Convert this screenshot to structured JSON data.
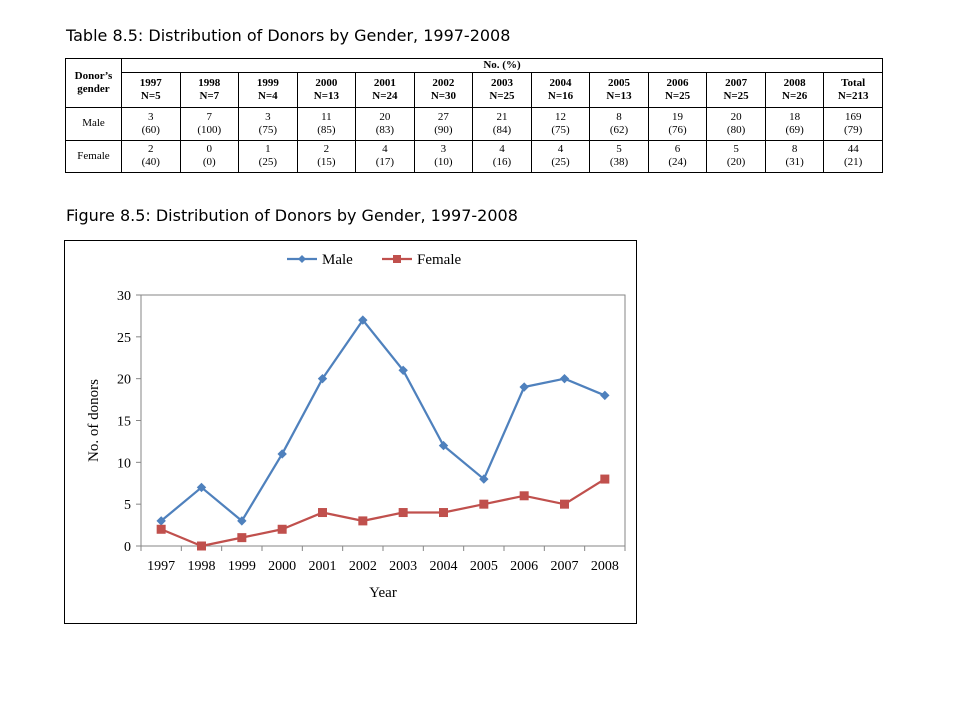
{
  "table_caption": "Table 8.5: Distribution of Donors by Gender, 1997-2008",
  "figure_caption": "Figure 8.5: Distribution of Donors by Gender, 1997-2008",
  "table": {
    "corner_header": "Donor’s gender",
    "group_header": "No. (%)",
    "columns": [
      {
        "year": "1997",
        "n": "N=5"
      },
      {
        "year": "1998",
        "n": "N=7"
      },
      {
        "year": "1999",
        "n": "N=4"
      },
      {
        "year": "2000",
        "n": "N=13"
      },
      {
        "year": "2001",
        "n": "N=24"
      },
      {
        "year": "2002",
        "n": "N=30"
      },
      {
        "year": "2003",
        "n": "N=25"
      },
      {
        "year": "2004",
        "n": "N=16"
      },
      {
        "year": "2005",
        "n": "N=13"
      },
      {
        "year": "2006",
        "n": "N=25"
      },
      {
        "year": "2007",
        "n": "N=25"
      },
      {
        "year": "2008",
        "n": "N=26"
      },
      {
        "year": "Total",
        "n": "N=213"
      }
    ],
    "rows": [
      {
        "label": "Male",
        "cells": [
          {
            "count": "3",
            "pct": "(60)"
          },
          {
            "count": "7",
            "pct": "(100)"
          },
          {
            "count": "3",
            "pct": "(75)"
          },
          {
            "count": "11",
            "pct": "(85)"
          },
          {
            "count": "20",
            "pct": "(83)"
          },
          {
            "count": "27",
            "pct": "(90)"
          },
          {
            "count": "21",
            "pct": "(84)"
          },
          {
            "count": "12",
            "pct": "(75)"
          },
          {
            "count": "8",
            "pct": "(62)"
          },
          {
            "count": "19",
            "pct": "(76)"
          },
          {
            "count": "20",
            "pct": "(80)"
          },
          {
            "count": "18",
            "pct": "(69)"
          },
          {
            "count": "169",
            "pct": "(79)"
          }
        ]
      },
      {
        "label": "Female",
        "cells": [
          {
            "count": "2",
            "pct": "(40)"
          },
          {
            "count": "0",
            "pct": "(0)"
          },
          {
            "count": "1",
            "pct": "(25)"
          },
          {
            "count": "2",
            "pct": "(15)"
          },
          {
            "count": "4",
            "pct": "(17)"
          },
          {
            "count": "3",
            "pct": "(10)"
          },
          {
            "count": "4",
            "pct": "(16)"
          },
          {
            "count": "4",
            "pct": "(25)"
          },
          {
            "count": "5",
            "pct": "(38)"
          },
          {
            "count": "6",
            "pct": "(24)"
          },
          {
            "count": "5",
            "pct": "(20)"
          },
          {
            "count": "8",
            "pct": "(31)"
          },
          {
            "count": "44",
            "pct": "(21)"
          }
        ]
      }
    ]
  },
  "chart_data": {
    "type": "line",
    "title": "",
    "xlabel": "Year",
    "ylabel": "No. of donors",
    "categories": [
      "1997",
      "1998",
      "1999",
      "2000",
      "2001",
      "2002",
      "2003",
      "2004",
      "2005",
      "2006",
      "2007",
      "2008"
    ],
    "ylim": [
      0,
      30
    ],
    "yticks": [
      0,
      5,
      10,
      15,
      20,
      25,
      30
    ],
    "grid": false,
    "legend_position": "top",
    "series": [
      {
        "name": "Male",
        "color": "#4F81BD",
        "marker": "diamond",
        "values": [
          3,
          7,
          3,
          11,
          20,
          27,
          21,
          12,
          8,
          19,
          20,
          18
        ]
      },
      {
        "name": "Female",
        "color": "#C0504D",
        "marker": "square",
        "values": [
          2,
          0,
          1,
          2,
          4,
          3,
          4,
          4,
          5,
          6,
          5,
          8
        ]
      }
    ]
  }
}
